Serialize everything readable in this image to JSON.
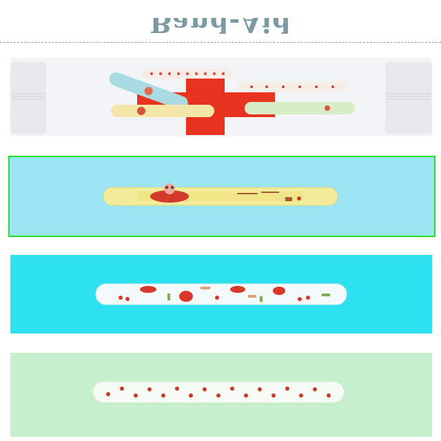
{
  "header": {
    "title": "Band-Aid"
  },
  "colors": {
    "title": "#7b9aa3",
    "selected_border": "#22e02a",
    "card1_bg": "#9de5f5",
    "card2_bg": "#2de1ee",
    "card3_bg": "#c6efcb",
    "red_cross": "#e8331f"
  },
  "cards": [
    {
      "name": "hero-first-aid-kit",
      "selected": false
    },
    {
      "name": "bandage-yellow-girl",
      "selected": true
    },
    {
      "name": "bandage-white-strawberry",
      "selected": false
    },
    {
      "name": "bandage-white-cherry",
      "selected": false
    }
  ]
}
